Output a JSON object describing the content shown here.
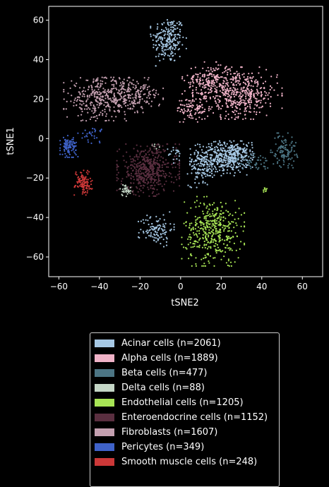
{
  "chart_data": {
    "type": "scatter",
    "xlabel": "tSNE2",
    "ylabel": "tSNE1",
    "xlim": [
      -65,
      70
    ],
    "ylim": [
      -70,
      67
    ],
    "xticks": [
      -60,
      -40,
      -20,
      0,
      20,
      40,
      60
    ],
    "yticks": [
      -60,
      -40,
      -20,
      0,
      20,
      40,
      60
    ],
    "background": "#000000",
    "legend_position": "below-plot",
    "series": [
      {
        "name": "Acinar cells (n=2061)",
        "color": "#a6c8e4",
        "clusters": [
          {
            "cx": -6,
            "cy": 50,
            "sx": 4,
            "sy": 6,
            "n": 220
          },
          {
            "cx": 20,
            "cy": -10,
            "sx": 7,
            "sy": 4,
            "n": 380
          },
          {
            "cx": 27,
            "cy": -8,
            "sx": 4,
            "sy": 3,
            "n": 120
          },
          {
            "cx": 10,
            "cy": -16,
            "sx": 3,
            "sy": 4,
            "n": 80
          },
          {
            "cx": -12,
            "cy": -46,
            "sx": 4,
            "sy": 4,
            "n": 110
          },
          {
            "cx": -2,
            "cy": -8,
            "sx": 2,
            "sy": 2,
            "n": 20
          }
        ]
      },
      {
        "name": "Alpha cells (n=1889)",
        "color": "#f0b3c8",
        "clusters": [
          {
            "cx": 28,
            "cy": 23,
            "sx": 10,
            "sy": 6,
            "n": 480
          },
          {
            "cx": 14,
            "cy": 30,
            "sx": 6,
            "sy": 4,
            "n": 150
          },
          {
            "cx": 6,
            "cy": 15,
            "sx": 4,
            "sy": 3,
            "n": 90
          }
        ]
      },
      {
        "name": "Beta cells (n=477)",
        "color": "#4c7584",
        "clusters": [
          {
            "cx": 51,
            "cy": -6,
            "sx": 3,
            "sy": 4,
            "n": 110
          },
          {
            "cx": 36,
            "cy": -12,
            "sx": 4,
            "sy": 2,
            "n": 45
          }
        ]
      },
      {
        "name": "Delta cells (n=88)",
        "color": "#c4d6c6",
        "clusters": [
          {
            "cx": -27,
            "cy": -26,
            "sx": 1.5,
            "sy": 1.5,
            "n": 35
          },
          {
            "cx": -12,
            "cy": -4,
            "sx": 1,
            "sy": 1,
            "n": 6
          }
        ]
      },
      {
        "name": "Endothelial cells (n=1205)",
        "color": "#a7e455",
        "clusters": [
          {
            "cx": 16,
            "cy": -47,
            "sx": 7,
            "sy": 8,
            "n": 420
          },
          {
            "cx": 42,
            "cy": -26,
            "sx": 0.7,
            "sy": 0.7,
            "n": 10
          }
        ]
      },
      {
        "name": "Enteroendocrine cells (n=1152)",
        "color": "#5a2f40",
        "clusters": [
          {
            "cx": -16,
            "cy": -16,
            "sx": 7,
            "sy": 6,
            "n": 480
          }
        ]
      },
      {
        "name": "Fibroblasts (n=1607)",
        "color": "#c4a0b0",
        "clusters": [
          {
            "cx": -40,
            "cy": 20,
            "sx": 8,
            "sy": 5,
            "n": 320
          },
          {
            "cx": -24,
            "cy": 22,
            "sx": 7,
            "sy": 4,
            "n": 200
          }
        ]
      },
      {
        "name": "Pericytes (n=349)",
        "color": "#3f62c9",
        "clusters": [
          {
            "cx": -55,
            "cy": -4,
            "sx": 2,
            "sy": 2.5,
            "n": 100
          },
          {
            "cx": -44,
            "cy": 2,
            "sx": 3,
            "sy": 2,
            "n": 30
          }
        ]
      },
      {
        "name": "Smooth muscle cells (n=248)",
        "color": "#cc3838",
        "clusters": [
          {
            "cx": -48,
            "cy": -22,
            "sx": 2,
            "sy": 3,
            "n": 110
          }
        ]
      }
    ]
  }
}
